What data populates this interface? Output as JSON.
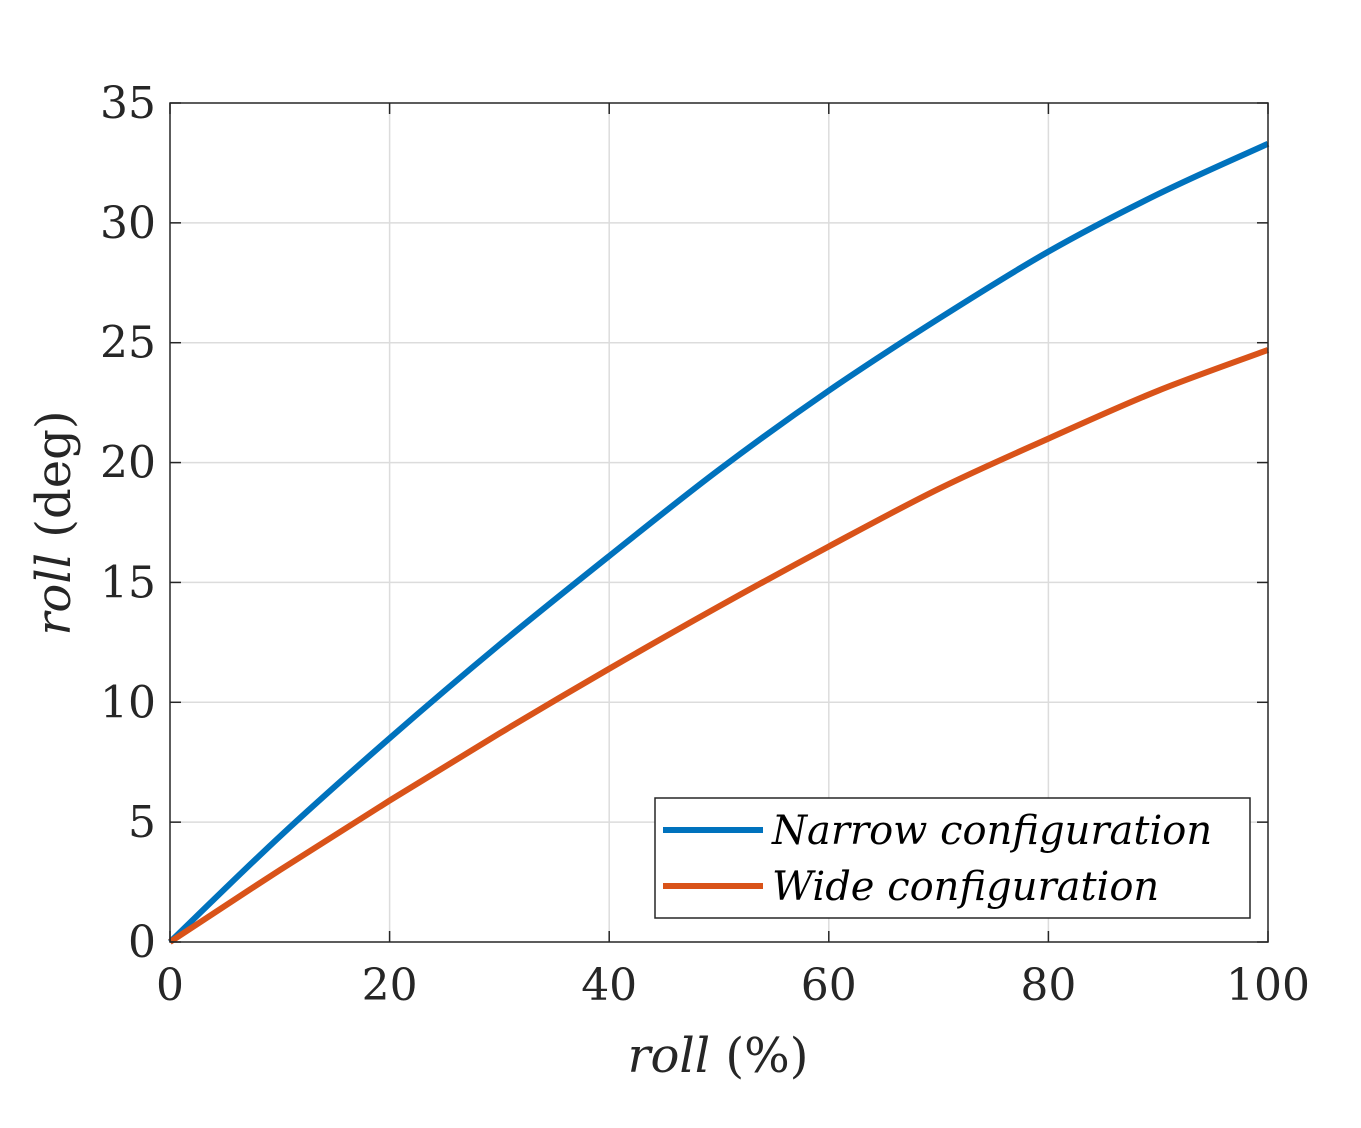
{
  "chart_data": {
    "type": "line",
    "title": "",
    "xlabel_var": "roll",
    "xlabel_unit": "(%)",
    "ylabel_var": "roll",
    "ylabel_unit": "(deg)",
    "xlim": [
      0,
      100
    ],
    "ylim": [
      0,
      35
    ],
    "xticks": [
      0,
      20,
      40,
      60,
      80,
      100
    ],
    "yticks": [
      0,
      5,
      10,
      15,
      20,
      25,
      30,
      35
    ],
    "grid": true,
    "legend_position": "bottom-right",
    "x": [
      0,
      10,
      20,
      30,
      40,
      50,
      60,
      70,
      80,
      90,
      100
    ],
    "series": [
      {
        "name": "Narrow configuration",
        "color": "#0072BD",
        "values": [
          0,
          4.4,
          8.5,
          12.4,
          16.1,
          19.7,
          23.0,
          26.0,
          28.8,
          31.2,
          33.3
        ]
      },
      {
        "name": "Wide configuration",
        "color": "#D95319",
        "values": [
          0,
          3.0,
          5.9,
          8.7,
          11.4,
          14.0,
          16.5,
          18.9,
          21.0,
          23.0,
          24.7
        ]
      }
    ]
  }
}
